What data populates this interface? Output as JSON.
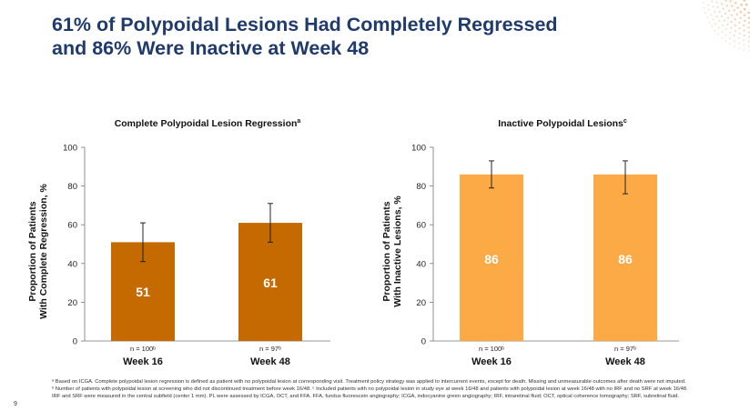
{
  "page": {
    "title_line1": "61% of Polypoidal Lesions Had Completely Regressed",
    "title_line2": "and 86% Were Inactive at Week 48",
    "page_number": "9",
    "footnote": "ᵃ Based on ICGA. Complete polypoidal lesion regression is defined as patient with no polypoidal lesion at corresponding visit. Treatment policy strategy was applied to intercurrent events, except for death. Missing and unmeasurable outcomes after death were not imputed. ᵇ Number of patients with polypoidal lesion at screening who did not discontinued treatment before week 16/48. ᶜ Included patients with no polypoidal lesion in study eye at week 16/48 and patients with polypoidal lesion at week 16/48 with no IRF and no SRF at week 16/48. IRF and SRF were measured in the central subfield (center 1 mm). PL were assessed by ICGA, OCT, and FFA. FFA, fundus fluorescein angiography; ICGA, indocyanine green angiography; IRF, intraretinal fluid; OCT, optical coherence tomography; SRF, subretinal fluid."
  },
  "colors": {
    "title": "#1f3a6b",
    "left_bar": "#c46a00",
    "right_bar": "#fbaa45",
    "logo": "#f0b27a"
  },
  "chart_data": [
    {
      "type": "bar",
      "title": "Complete Polypoidal Lesion Regression",
      "title_sup": "a",
      "ylabel_line1": "Proportion of Patients",
      "ylabel_line2": "With Complete Regression, %",
      "ylim": [
        0,
        100
      ],
      "yticks": [
        0,
        20,
        40,
        60,
        80,
        100
      ],
      "grid": false,
      "categories": [
        "Week 16",
        "Week 48"
      ],
      "n_labels": [
        "n = 100ᵇ",
        "n = 97ᵇ"
      ],
      "values": [
        51,
        61
      ],
      "value_labels": [
        "51",
        "61"
      ],
      "error_low": [
        41,
        51
      ],
      "error_high": [
        61,
        71
      ],
      "color": "#c46a00"
    },
    {
      "type": "bar",
      "title": "Inactive Polypoidal Lesions",
      "title_sup": "c",
      "ylabel_line1": "Proportion of Patients",
      "ylabel_line2": "With Inactive Lesions, %",
      "ylim": [
        0,
        100
      ],
      "yticks": [
        0,
        20,
        40,
        60,
        80,
        100
      ],
      "grid": false,
      "categories": [
        "Week 16",
        "Week 48"
      ],
      "n_labels": [
        "n = 100ᵇ",
        "n = 97ᵇ"
      ],
      "values": [
        86,
        86
      ],
      "value_labels": [
        "86",
        "86"
      ],
      "error_low": [
        79,
        76
      ],
      "error_high": [
        93,
        93
      ],
      "color": "#fbaa45"
    }
  ]
}
